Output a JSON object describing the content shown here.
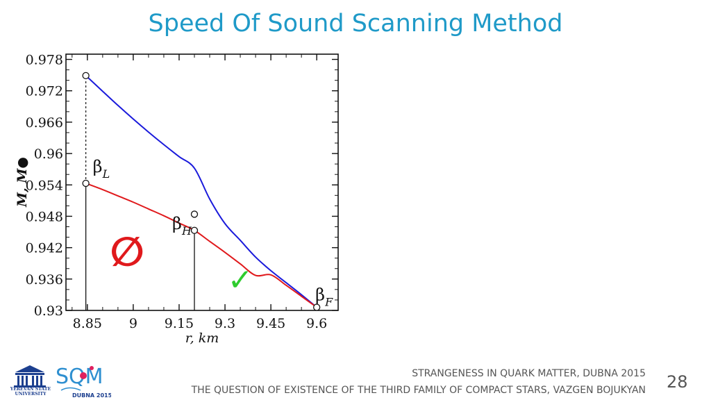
{
  "title": "Speed Of Sound Scanning Method",
  "footer": {
    "conference": "STRANGENESS IN QUARK MATTER,  DUBNA 2015",
    "talk": "THE QUESTION OF EXISTENCE OF THE THIRD FAMILY OF COMPACT STARS, VAZGEN BOJUKYAN",
    "page_number": "28"
  },
  "logos": {
    "university_text_line1": "YEREVAN STATE",
    "university_text_line2": "UNIVERSITY",
    "conference_logo_text": "SQM",
    "conference_logo_subtext": "DUBNA 2015",
    "university_color": "#1c3f8f",
    "sqm_colors": [
      "#2e8fd0",
      "#e0205e"
    ]
  },
  "chart_data": {
    "type": "line",
    "xlabel": "r, km",
    "ylabel": "M, M●",
    "xlim": [
      8.78,
      9.67
    ],
    "ylim": [
      0.93,
      0.979
    ],
    "x_ticks": [
      "8.85",
      "9",
      "9.15",
      "9.3",
      "9.45",
      "9.6"
    ],
    "x_tick_values": [
      8.85,
      9.0,
      9.15,
      9.3,
      9.45,
      9.6
    ],
    "y_ticks": [
      "0.978",
      "0.972",
      "0.966",
      "0.96",
      "0.954",
      "0.948",
      "0.942",
      "0.936",
      "0.93"
    ],
    "y_tick_values": [
      0.978,
      0.972,
      0.966,
      0.96,
      0.954,
      0.948,
      0.942,
      0.936,
      0.93
    ],
    "grid": false,
    "series": [
      {
        "color": "#1a1adb",
        "x": [
          8.845,
          8.9,
          8.95,
          9.0,
          9.05,
          9.1,
          9.15,
          9.2,
          9.25,
          9.3,
          9.35,
          9.4,
          9.45,
          9.5,
          9.55,
          9.6
        ],
        "y": [
          0.9749,
          0.9719,
          0.9692,
          0.9666,
          0.9641,
          0.9617,
          0.9594,
          0.9572,
          0.9513,
          0.9466,
          0.9434,
          0.9402,
          0.9376,
          0.9353,
          0.933,
          0.9306
        ]
      },
      {
        "color": "#e0191c",
        "x": [
          8.845,
          8.9,
          8.95,
          9.0,
          9.05,
          9.1,
          9.15,
          9.2,
          9.25,
          9.3,
          9.35,
          9.4,
          9.45,
          9.5,
          9.55,
          9.6
        ],
        "y": [
          0.9543,
          0.9531,
          0.9519,
          0.9507,
          0.9494,
          0.9481,
          0.9467,
          0.9453,
          0.9432,
          0.9411,
          0.9389,
          0.9367,
          0.9368,
          0.9348,
          0.9327,
          0.9306
        ]
      }
    ],
    "points": [
      {
        "label": "β",
        "sub": "L",
        "x": 8.845,
        "y": 0.9543
      },
      {
        "label": "β",
        "sub": "H",
        "x": 9.2,
        "y": 0.9453
      },
      {
        "label": "β",
        "sub": "F",
        "x": 9.6,
        "y": 0.9306
      }
    ],
    "extra_markers": [
      {
        "x": 8.845,
        "y": 0.9749
      },
      {
        "x": 9.2,
        "y": 0.9484
      }
    ],
    "dashed_connector": {
      "x": 8.845,
      "y_from": 0.9543,
      "y_to": 0.9749
    },
    "vertical_lines": [
      {
        "x": 8.845,
        "y_to": 0.9543
      },
      {
        "x": 9.2,
        "y_to": 0.9453
      }
    ],
    "annotations": [
      {
        "symbol": "∅",
        "color": "#e0191c",
        "x": 8.98,
        "y": 0.9412
      },
      {
        "symbol": "✓",
        "color": "#2ecc2e",
        "x": 9.35,
        "y": 0.9365
      }
    ]
  }
}
